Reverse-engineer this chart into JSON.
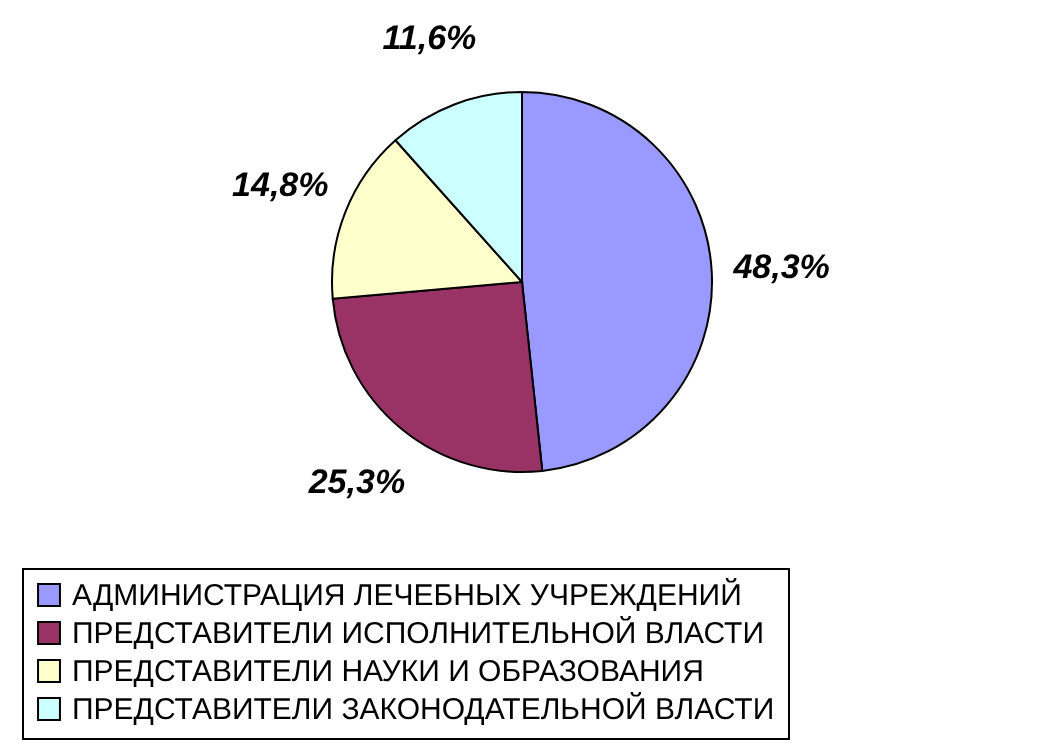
{
  "chart_data": {
    "type": "pie",
    "categories": [
      "АДМИНИСТРАЦИЯ ЛЕЧЕБНЫХ УЧРЕЖДЕНИЙ",
      "ПРЕДСТАВИТЕЛИ ИСПОЛНИТЕЛЬНОЙ ВЛАСТИ",
      "ПРЕДСТАВИТЕЛИ НАУКИ И ОБРАЗОВАНИЯ",
      "ПРЕДСТАВИТЕЛИ ЗАКОНОДАТЕЛЬНОЙ ВЛАСТИ"
    ],
    "values": [
      48.3,
      25.3,
      14.8,
      11.6
    ],
    "colors": [
      "#9999ff",
      "#993366",
      "#ffffcc",
      "#ccffff"
    ],
    "value_labels": [
      "48,3%",
      "25,3%",
      "14,8%",
      "11,6%"
    ],
    "legend": "bottom"
  }
}
